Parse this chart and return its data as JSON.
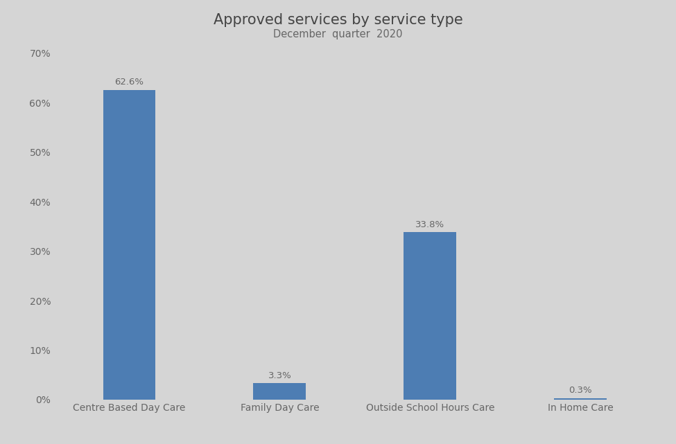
{
  "title": "Approved services by service type",
  "subtitle": "December  quarter  2020",
  "categories": [
    "Centre Based Day Care",
    "Family Day Care",
    "Outside School Hours Care",
    "In Home Care"
  ],
  "values": [
    62.6,
    3.3,
    33.8,
    0.3
  ],
  "bar_color": "#4d7db3",
  "background_color": "#d5d5d5",
  "ylim": [
    0,
    70
  ],
  "yticks": [
    0,
    10,
    20,
    30,
    40,
    50,
    60,
    70
  ],
  "ytick_labels": [
    "0%",
    "10%",
    "20%",
    "30%",
    "40%",
    "50%",
    "60%",
    "70%"
  ],
  "title_fontsize": 15,
  "subtitle_fontsize": 10.5,
  "label_fontsize": 10,
  "tick_label_color": "#666666",
  "title_color": "#444444",
  "bar_label_fontsize": 9.5
}
